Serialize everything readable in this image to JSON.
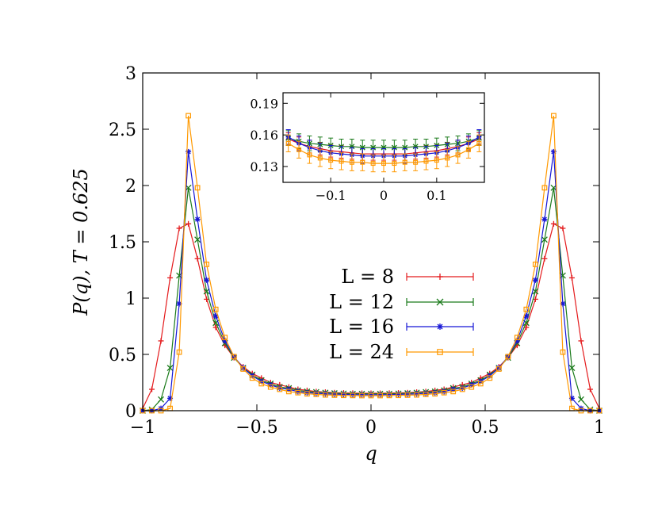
{
  "chart_data": {
    "type": "line",
    "xlabel": "q",
    "ylabel": "P(q), T = 0.625",
    "xlim": [
      -1,
      1
    ],
    "ylim": [
      0,
      3
    ],
    "xticks": [
      -1,
      -0.5,
      0,
      0.5,
      1
    ],
    "xtick_labels": [
      "−1",
      "−0.5",
      "0",
      "0.5",
      "1"
    ],
    "yticks": [
      0,
      0.5,
      1,
      1.5,
      2,
      2.5,
      3
    ],
    "ytick_labels": [
      "0",
      "0.5",
      "1",
      "1.5",
      "2",
      "2.5",
      "3"
    ],
    "grid": false,
    "legend_placement": "center",
    "series": [
      {
        "name": "L = 8",
        "color": "#e41a1c",
        "marker": "plus",
        "x": [
          -1.0,
          -0.96,
          -0.92,
          -0.88,
          -0.84,
          -0.8,
          -0.76,
          -0.72,
          -0.68,
          -0.64,
          -0.6,
          -0.56,
          -0.52,
          -0.48,
          -0.44,
          -0.4,
          -0.36,
          -0.32,
          -0.28,
          -0.24,
          -0.2,
          -0.16,
          -0.12,
          -0.08,
          -0.04,
          0.0,
          0.04,
          0.08,
          0.12,
          0.16,
          0.2,
          0.24,
          0.28,
          0.32,
          0.36,
          0.4,
          0.44,
          0.48,
          0.52,
          0.56,
          0.6,
          0.64,
          0.68,
          0.72,
          0.76,
          0.8,
          0.84,
          0.88,
          0.92,
          0.96,
          1.0
        ],
        "y": [
          0.02,
          0.19,
          0.62,
          1.18,
          1.62,
          1.66,
          1.35,
          0.99,
          0.74,
          0.58,
          0.47,
          0.39,
          0.33,
          0.29,
          0.25,
          0.23,
          0.21,
          0.19,
          0.18,
          0.17,
          0.165,
          0.16,
          0.158,
          0.156,
          0.155,
          0.155,
          0.155,
          0.156,
          0.158,
          0.16,
          0.165,
          0.17,
          0.18,
          0.19,
          0.21,
          0.23,
          0.25,
          0.29,
          0.33,
          0.39,
          0.47,
          0.58,
          0.74,
          0.99,
          1.35,
          1.66,
          1.62,
          1.18,
          0.62,
          0.19,
          0.02
        ]
      },
      {
        "name": "L = 12",
        "color": "#1a7a1a",
        "marker": "x",
        "x": [
          -1.0,
          -0.96,
          -0.92,
          -0.88,
          -0.84,
          -0.8,
          -0.76,
          -0.72,
          -0.68,
          -0.64,
          -0.6,
          -0.56,
          -0.52,
          -0.48,
          -0.44,
          -0.4,
          -0.36,
          -0.32,
          -0.28,
          -0.24,
          -0.2,
          -0.16,
          -0.12,
          -0.08,
          -0.04,
          0.0,
          0.04,
          0.08,
          0.12,
          0.16,
          0.2,
          0.24,
          0.28,
          0.32,
          0.36,
          0.4,
          0.44,
          0.48,
          0.52,
          0.56,
          0.6,
          0.64,
          0.68,
          0.72,
          0.76,
          0.8,
          0.84,
          0.88,
          0.92,
          0.96,
          1.0
        ],
        "y": [
          0.0,
          0.01,
          0.1,
          0.38,
          1.2,
          1.98,
          1.52,
          1.06,
          0.78,
          0.6,
          0.47,
          0.38,
          0.32,
          0.27,
          0.24,
          0.21,
          0.2,
          0.18,
          0.17,
          0.165,
          0.16,
          0.155,
          0.152,
          0.15,
          0.15,
          0.15,
          0.15,
          0.15,
          0.152,
          0.155,
          0.16,
          0.165,
          0.17,
          0.18,
          0.2,
          0.21,
          0.24,
          0.27,
          0.32,
          0.38,
          0.47,
          0.6,
          0.78,
          1.06,
          1.52,
          1.98,
          1.2,
          0.38,
          0.1,
          0.01,
          0.0
        ]
      },
      {
        "name": "L = 16",
        "color": "#1515d6",
        "marker": "star",
        "x": [
          -1.0,
          -0.96,
          -0.92,
          -0.88,
          -0.84,
          -0.8,
          -0.76,
          -0.72,
          -0.68,
          -0.64,
          -0.6,
          -0.56,
          -0.52,
          -0.48,
          -0.44,
          -0.4,
          -0.36,
          -0.32,
          -0.28,
          -0.24,
          -0.2,
          -0.16,
          -0.12,
          -0.08,
          -0.04,
          0.0,
          0.04,
          0.08,
          0.12,
          0.16,
          0.2,
          0.24,
          0.28,
          0.32,
          0.36,
          0.4,
          0.44,
          0.48,
          0.52,
          0.56,
          0.6,
          0.64,
          0.68,
          0.72,
          0.76,
          0.8,
          0.84,
          0.88,
          0.92,
          0.96,
          1.0
        ],
        "y": [
          0.0,
          0.0,
          0.02,
          0.11,
          0.95,
          2.3,
          1.7,
          1.16,
          0.84,
          0.62,
          0.48,
          0.38,
          0.31,
          0.26,
          0.23,
          0.2,
          0.19,
          0.17,
          0.16,
          0.155,
          0.15,
          0.147,
          0.145,
          0.143,
          0.142,
          0.142,
          0.142,
          0.143,
          0.145,
          0.147,
          0.15,
          0.155,
          0.16,
          0.17,
          0.19,
          0.2,
          0.23,
          0.26,
          0.31,
          0.38,
          0.48,
          0.62,
          0.84,
          1.16,
          1.7,
          2.3,
          0.95,
          0.11,
          0.02,
          0.0,
          0.0
        ]
      },
      {
        "name": "L = 24",
        "color": "#ff9900",
        "marker": "square",
        "x": [
          -1.0,
          -0.96,
          -0.92,
          -0.88,
          -0.84,
          -0.8,
          -0.76,
          -0.72,
          -0.68,
          -0.64,
          -0.6,
          -0.56,
          -0.52,
          -0.48,
          -0.44,
          -0.4,
          -0.36,
          -0.32,
          -0.28,
          -0.24,
          -0.2,
          -0.16,
          -0.12,
          -0.08,
          -0.04,
          0.0,
          0.04,
          0.08,
          0.12,
          0.16,
          0.2,
          0.24,
          0.28,
          0.32,
          0.36,
          0.4,
          0.44,
          0.48,
          0.52,
          0.56,
          0.6,
          0.64,
          0.68,
          0.72,
          0.76,
          0.8,
          0.84,
          0.88,
          0.92,
          0.96,
          1.0
        ],
        "y": [
          0.0,
          0.0,
          0.0,
          0.02,
          0.52,
          2.62,
          1.98,
          1.3,
          0.9,
          0.65,
          0.48,
          0.37,
          0.29,
          0.24,
          0.21,
          0.19,
          0.17,
          0.16,
          0.15,
          0.145,
          0.14,
          0.138,
          0.136,
          0.135,
          0.134,
          0.134,
          0.134,
          0.135,
          0.136,
          0.138,
          0.14,
          0.145,
          0.15,
          0.16,
          0.17,
          0.19,
          0.21,
          0.24,
          0.29,
          0.37,
          0.48,
          0.65,
          0.9,
          1.3,
          1.98,
          2.62,
          0.52,
          0.02,
          0.0,
          0.0,
          0.0
        ]
      }
    ],
    "inset": {
      "xlim": [
        -0.19,
        0.19
      ],
      "ylim": [
        0.115,
        0.2
      ],
      "xticks": [
        -0.1,
        0,
        0.1
      ],
      "xtick_labels": [
        "−0.1",
        "0",
        "0.1"
      ],
      "yticks": [
        0.13,
        0.16,
        0.19
      ],
      "ytick_labels": [
        "0.13",
        "0.16",
        "0.19"
      ],
      "series": [
        {
          "name": "L = 8",
          "color": "#e41a1c",
          "x": [
            -0.18,
            -0.16,
            -0.14,
            -0.12,
            -0.1,
            -0.08,
            -0.06,
            -0.04,
            -0.02,
            0.0,
            0.02,
            0.04,
            0.06,
            0.08,
            0.1,
            0.12,
            0.14,
            0.16,
            0.18
          ],
          "y": [
            0.156,
            0.152,
            0.149,
            0.147,
            0.145,
            0.144,
            0.143,
            0.142,
            0.142,
            0.142,
            0.142,
            0.142,
            0.143,
            0.144,
            0.145,
            0.147,
            0.149,
            0.152,
            0.156
          ],
          "err": 0.006
        },
        {
          "name": "L = 12",
          "color": "#1a7a1a",
          "x": [
            -0.18,
            -0.16,
            -0.14,
            -0.12,
            -0.1,
            -0.08,
            -0.06,
            -0.04,
            -0.02,
            0.0,
            0.02,
            0.04,
            0.06,
            0.08,
            0.1,
            0.12,
            0.14,
            0.16,
            0.18
          ],
          "y": [
            0.157,
            0.154,
            0.152,
            0.151,
            0.15,
            0.149,
            0.149,
            0.148,
            0.148,
            0.148,
            0.148,
            0.148,
            0.149,
            0.149,
            0.15,
            0.151,
            0.152,
            0.154,
            0.157
          ],
          "err": 0.007
        },
        {
          "name": "L = 16",
          "color": "#1515d6",
          "x": [
            -0.18,
            -0.16,
            -0.14,
            -0.12,
            -0.1,
            -0.08,
            -0.06,
            -0.04,
            -0.02,
            0.0,
            0.02,
            0.04,
            0.06,
            0.08,
            0.1,
            0.12,
            0.14,
            0.16,
            0.18
          ],
          "y": [
            0.158,
            0.152,
            0.148,
            0.145,
            0.143,
            0.142,
            0.141,
            0.14,
            0.14,
            0.14,
            0.14,
            0.14,
            0.141,
            0.142,
            0.143,
            0.145,
            0.148,
            0.152,
            0.158
          ],
          "err": 0.007
        },
        {
          "name": "L = 24",
          "color": "#ff9900",
          "x": [
            -0.18,
            -0.16,
            -0.14,
            -0.12,
            -0.1,
            -0.08,
            -0.06,
            -0.04,
            -0.02,
            0.0,
            0.02,
            0.04,
            0.06,
            0.08,
            0.1,
            0.12,
            0.14,
            0.16,
            0.18
          ],
          "y": [
            0.152,
            0.146,
            0.141,
            0.138,
            0.136,
            0.135,
            0.134,
            0.134,
            0.133,
            0.133,
            0.133,
            0.134,
            0.134,
            0.135,
            0.136,
            0.138,
            0.141,
            0.146,
            0.152
          ],
          "err": 0.008
        }
      ]
    }
  }
}
